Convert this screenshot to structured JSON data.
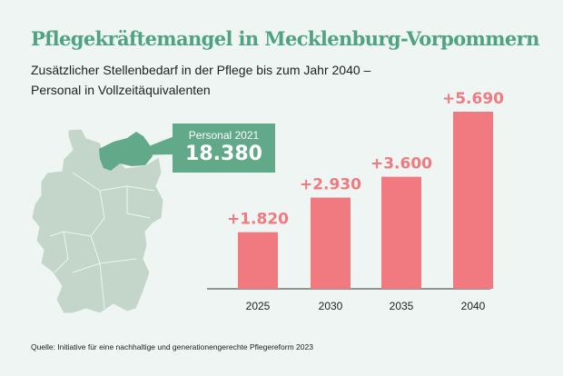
{
  "title": "Pflegekräftemangel in Mecklenburg-Vorpommern",
  "subtitle_line1": "Zusätzlicher Stellenbedarf in der Pflege bis zum Jahr 2040 –",
  "subtitle_line2": "Personal in Vollzeitäquivalenten",
  "callout": {
    "label": "Personal 2021",
    "value": "18.380"
  },
  "source": "Quelle: Initiative für eine nachhaltige und generationengerechte Pflegereform 2023",
  "colors": {
    "title": "#4fa383",
    "bar": "#f07a80",
    "label": "#f07a80",
    "map": "#c3d6c9",
    "highlight": "#62a98a"
  },
  "chart_data": {
    "type": "bar",
    "categories": [
      "2025",
      "2030",
      "2035",
      "2040"
    ],
    "values": [
      1820,
      2930,
      3600,
      5690
    ],
    "data_labels": [
      "+1.820",
      "+2.930",
      "+3.600",
      "+5.690"
    ],
    "ylim": [
      0,
      5690
    ],
    "grid": false
  }
}
